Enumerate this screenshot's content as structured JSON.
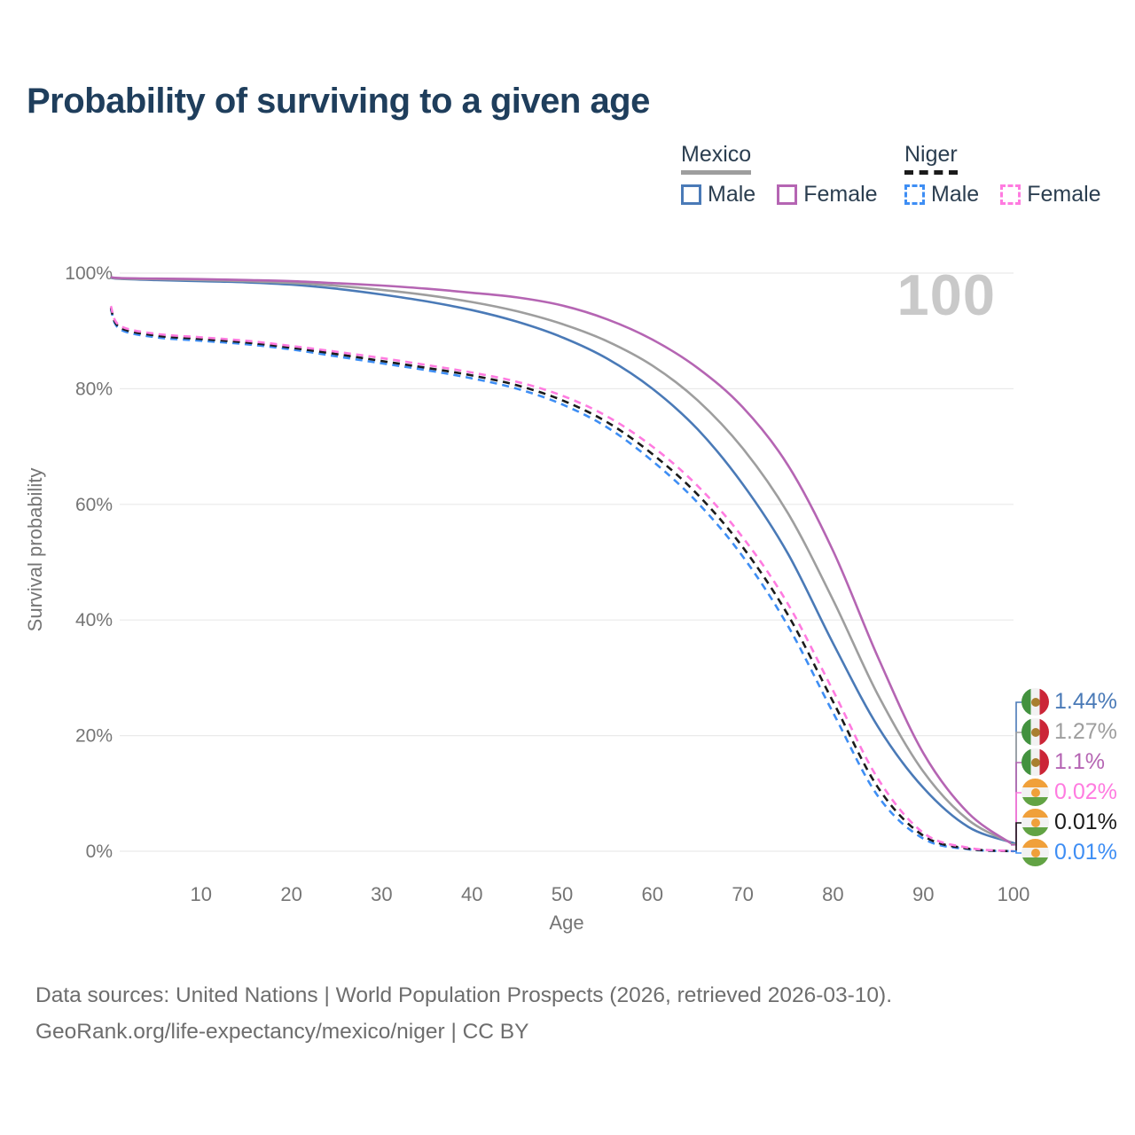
{
  "header": {
    "title": "Probability of surviving to a given age"
  },
  "legend": {
    "groups": [
      {
        "title": "Mexico",
        "line_style": "solid",
        "line_color": "#9e9e9e",
        "items": [
          {
            "label": "Male",
            "color": "#4a7ab7",
            "style": "solid"
          },
          {
            "label": "Female",
            "color": "#b565b3",
            "style": "solid"
          }
        ]
      },
      {
        "title": "Niger",
        "line_style": "dashed",
        "line_color": "#1b1b1b",
        "items": [
          {
            "label": "Male",
            "color": "#3e8ef4",
            "style": "dashed"
          },
          {
            "label": "Female",
            "color": "#ff7be0",
            "style": "dashed"
          }
        ]
      }
    ]
  },
  "chart_data": {
    "type": "line",
    "title": "Probability of surviving to a given age",
    "xlabel": "Age",
    "ylabel": "Survival probability",
    "age_counter": "100",
    "xlim": [
      0,
      100
    ],
    "ylim": [
      0,
      100
    ],
    "grid": "horizontal-only",
    "grid_color": "#eaeaea",
    "axis_text_color": "#757575",
    "x_ticks": [
      10,
      20,
      30,
      40,
      50,
      60,
      70,
      80,
      90,
      100
    ],
    "y_ticks": [
      0,
      20,
      40,
      60,
      80,
      100
    ],
    "y_tick_labels": [
      "0%",
      "20%",
      "40%",
      "60%",
      "80%",
      "100%"
    ],
    "x": [
      0,
      1,
      5,
      10,
      15,
      20,
      25,
      30,
      35,
      40,
      45,
      50,
      55,
      60,
      65,
      70,
      75,
      80,
      85,
      90,
      95,
      100
    ],
    "series": [
      {
        "name": "Mexico Male",
        "country": "Mexico",
        "sex": "Male",
        "color": "#4a7ab7",
        "dash": "solid",
        "z": 1,
        "end_label": "1.44%",
        "flag": "mexico",
        "values": [
          99.2,
          99.0,
          98.8,
          98.6,
          98.4,
          98.0,
          97.3,
          96.3,
          95.1,
          93.6,
          91.6,
          88.9,
          85.2,
          80.0,
          73.0,
          63.5,
          51.5,
          36.0,
          21.5,
          11.0,
          4.2,
          1.44
        ]
      },
      {
        "name": "Mexico Total",
        "country": "Mexico",
        "sex": "Both",
        "color": "#9e9e9e",
        "dash": "solid",
        "z": 2,
        "end_label": "1.27%",
        "flag": "mexico",
        "values": [
          99.25,
          99.05,
          98.95,
          98.8,
          98.6,
          98.3,
          97.8,
          97.1,
          96.2,
          95.0,
          93.4,
          91.2,
          88.2,
          84.0,
          78.0,
          69.7,
          58.5,
          43.5,
          27.0,
          13.8,
          5.4,
          1.27
        ]
      },
      {
        "name": "Mexico Female",
        "country": "Mexico",
        "sex": "Female",
        "color": "#b565b3",
        "dash": "solid",
        "z": 3,
        "end_label": "1.1%",
        "flag": "mexico",
        "values": [
          99.3,
          99.15,
          99.05,
          98.95,
          98.8,
          98.6,
          98.25,
          97.85,
          97.3,
          96.6,
          95.8,
          94.4,
          92.0,
          88.5,
          83.6,
          76.8,
          66.8,
          52.0,
          33.5,
          17.0,
          6.6,
          1.1
        ]
      },
      {
        "name": "Niger Female",
        "country": "Niger",
        "sex": "Female",
        "color": "#ff7be0",
        "dash": "dashed",
        "z": 6,
        "end_label": "0.02%",
        "flag": "niger",
        "values": [
          94.3,
          90.9,
          89.5,
          88.9,
          88.3,
          87.4,
          86.4,
          85.3,
          84.1,
          82.8,
          81.2,
          78.8,
          75.2,
          70.0,
          63.2,
          54.3,
          42.8,
          27.8,
          12.5,
          3.2,
          0.6,
          0.02
        ]
      },
      {
        "name": "Niger Total",
        "country": "Niger",
        "sex": "Both",
        "color": "#1b1b1b",
        "dash": "dashed",
        "z": 5,
        "end_label": "0.01%",
        "flag": "niger",
        "values": [
          94.0,
          90.6,
          89.2,
          88.6,
          88.0,
          87.1,
          86.0,
          84.8,
          83.6,
          82.3,
          80.6,
          78.0,
          74.2,
          68.7,
          61.7,
          52.6,
          40.9,
          25.9,
          11.0,
          2.7,
          0.45,
          0.01
        ]
      },
      {
        "name": "Niger Male",
        "country": "Niger",
        "sex": "Male",
        "color": "#3e8ef4",
        "dash": "dashed",
        "z": 4,
        "end_label": "0.01%",
        "flag": "niger",
        "values": [
          93.8,
          90.3,
          88.9,
          88.3,
          87.7,
          86.8,
          85.6,
          84.4,
          83.2,
          81.8,
          80.0,
          77.3,
          73.3,
          67.5,
          60.3,
          51.0,
          39.0,
          24.0,
          9.5,
          2.2,
          0.35,
          0.01
        ]
      }
    ],
    "legend_position": "top-right"
  },
  "footer": {
    "line1": "Data sources: United Nations | World Population Prospects (2026, retrieved 2026-03-10).",
    "line2": "GeoRank.org/life-expectancy/mexico/niger | CC BY"
  }
}
